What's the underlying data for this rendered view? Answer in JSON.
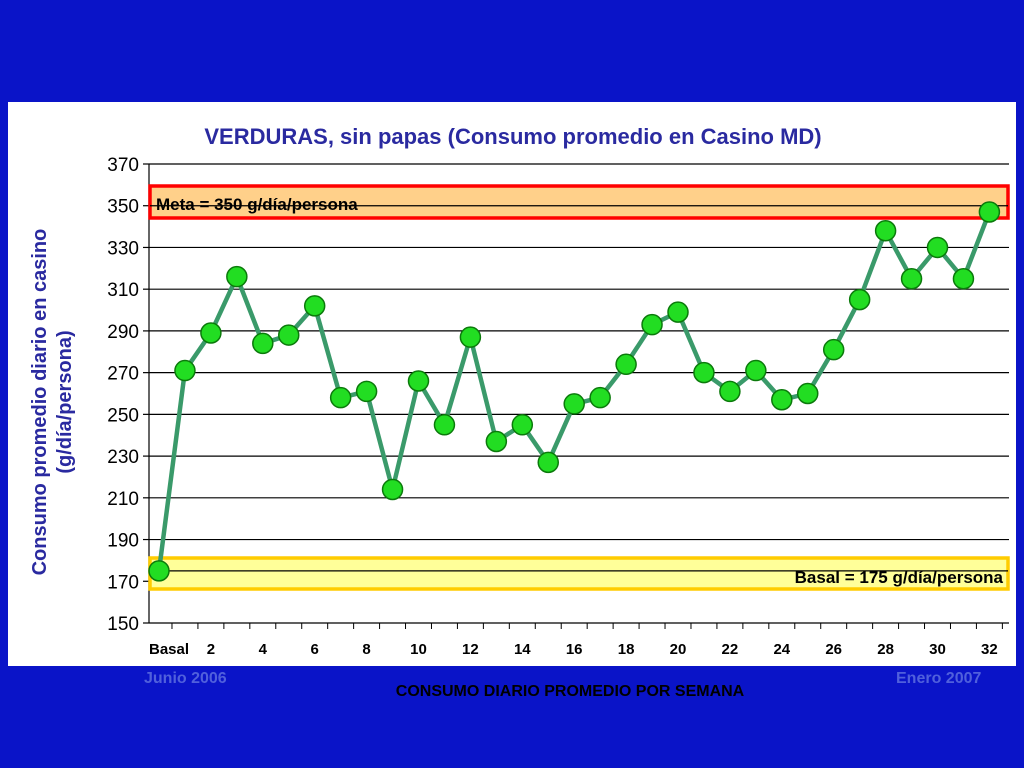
{
  "colors": {
    "background": "#0a14c8",
    "panel": "#ffffff",
    "title": "#2a2aa0",
    "line": "#3a9a6a",
    "marker_fill": "#22dd22",
    "marker_stroke": "#0b7a0b",
    "goal_band_fill": "#ffd08a",
    "goal_band_border": "#ff0000",
    "basal_band_fill": "#ffff99",
    "basal_band_border": "#ffcc00",
    "footer_dates": "#5060dc"
  },
  "footer": {
    "start_date": "Junio 2006",
    "end_date": "Enero 2007"
  },
  "chart_data": {
    "type": "line",
    "title": "VERDURAS, sin papas (Consumo promedio en Casino MD)",
    "xlabel": "CONSUMO DIARIO PROMEDIO POR SEMANA",
    "ylabel_lines": [
      "Consumo promedio diario en casino",
      "(g/día/persona)"
    ],
    "ylim": [
      150,
      370
    ],
    "y_ticks": [
      150,
      170,
      190,
      210,
      230,
      250,
      270,
      290,
      310,
      330,
      350,
      370
    ],
    "x_tick_labels": [
      "Basal",
      "2",
      "4",
      "6",
      "8",
      "10",
      "12",
      "14",
      "16",
      "18",
      "20",
      "22",
      "24",
      "26",
      "28",
      "30",
      "32"
    ],
    "x": [
      "Basal",
      1,
      2,
      3,
      4,
      5,
      6,
      7,
      8,
      9,
      10,
      11,
      12,
      13,
      14,
      15,
      16,
      17,
      18,
      19,
      20,
      21,
      22,
      23,
      24,
      25,
      26,
      27,
      28,
      29,
      30,
      31,
      32
    ],
    "values": [
      175,
      271,
      289,
      316,
      284,
      288,
      302,
      258,
      261,
      214,
      266,
      245,
      287,
      237,
      245,
      227,
      255,
      258,
      274,
      293,
      299,
      270,
      261,
      271,
      257,
      260,
      281,
      305,
      338,
      315,
      330,
      315,
      347
    ],
    "grid": true,
    "bands": [
      {
        "label": "Meta = 350 g/día/persona",
        "from": 345,
        "to": 350
      },
      {
        "label": "Basal = 175 g/día/persona",
        "from": 170,
        "to": 175
      }
    ]
  }
}
